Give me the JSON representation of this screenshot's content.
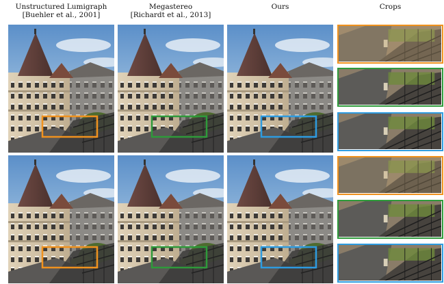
{
  "headers": [
    {
      "line1": "Unstructured Lumigraph",
      "line2": "[Buehler et al., 2001]"
    },
    {
      "line1": "Megastereo",
      "line2": "[Richardt et al., 2013]"
    },
    {
      "line1": "Ours",
      "line2": ""
    },
    {
      "line1": "Crops",
      "line2": ""
    }
  ],
  "colors": {
    "lumigraph": "#f0921e",
    "megastereo": "#2e9a3a",
    "ours": "#2d9be0"
  }
}
